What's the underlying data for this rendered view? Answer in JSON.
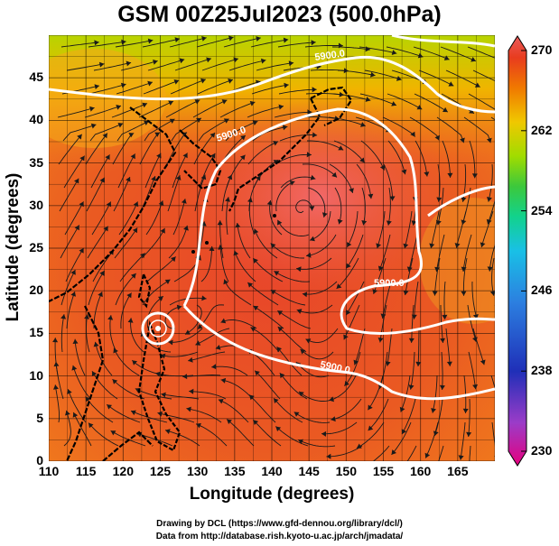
{
  "title": "GSM 00Z25Jul2023 (500.0hPa)",
  "axes": {
    "xlabel": "Longitude (degrees)",
    "ylabel": "Latitude  (degrees)",
    "x_ticks": [
      "110",
      "115",
      "120",
      "125",
      "130",
      "135",
      "140",
      "145",
      "150",
      "155",
      "160",
      "165"
    ],
    "y_ticks": [
      "0",
      "5",
      "10",
      "15",
      "20",
      "25",
      "30",
      "35",
      "40",
      "45"
    ],
    "x_range": [
      110,
      170
    ],
    "y_range": [
      0,
      50
    ]
  },
  "colorbar": {
    "ticks": [
      "270",
      "262",
      "254",
      "246",
      "238",
      "230"
    ],
    "range": [
      230,
      270
    ],
    "colors": [
      "#e6007e",
      "#9b3cc8",
      "#1f2fb8",
      "#2c7fe0",
      "#19c0e6",
      "#12d28c",
      "#3cc83c",
      "#a0dc00",
      "#f0c800",
      "#f07800",
      "#e83c1e",
      "#ea5a5a"
    ]
  },
  "contours": {
    "label": "5900.0",
    "line_color": "#ffffff"
  },
  "credits": {
    "line1": "Drawing by DCL (https://www.gfd-dennou.org/library/dcl/)",
    "line2": "Data from http://database.rish.kyoto-u.ac.jp/arch/jmadata/"
  }
}
